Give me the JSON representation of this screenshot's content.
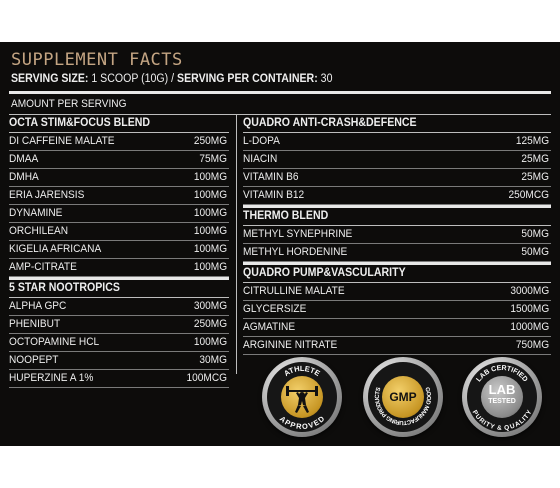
{
  "title": "SUPPLEMENT FACTS",
  "serving": {
    "size_label": "SERVING SIZE:",
    "size_value": "1 SCOOP (10G)",
    "separator": "/",
    "container_label": "SERVING PER CONTAINER:",
    "container_value": "30"
  },
  "amount_label": "AMOUNT PER SERVING",
  "left_blends": [
    {
      "name": "OCTA STIM&FOCUS BLEND",
      "items": [
        {
          "name": "DI CAFFEINE MALATE",
          "amount": "250MG"
        },
        {
          "name": "DMAA",
          "amount": "75MG"
        },
        {
          "name": "DMHA",
          "amount": "100MG"
        },
        {
          "name": "ERIA JARENSIS",
          "amount": "100MG"
        },
        {
          "name": "DYNAMINE",
          "amount": "100MG"
        },
        {
          "name": "ORCHILEAN",
          "amount": "100MG"
        },
        {
          "name": "KIGELIA AFRICANA",
          "amount": "100MG"
        },
        {
          "name": "AMP-CITRATE",
          "amount": "100MG"
        }
      ]
    },
    {
      "name": "5 STAR NOOTROPICS",
      "items": [
        {
          "name": "ALPHA GPC",
          "amount": "300MG"
        },
        {
          "name": "PHENIBUT",
          "amount": "250MG"
        },
        {
          "name": "OCTOPAMINE HCL",
          "amount": "100MG"
        },
        {
          "name": "NOOPEPT",
          "amount": "30MG"
        },
        {
          "name": "HUPERZINE A 1%",
          "amount": "100MCG"
        }
      ]
    }
  ],
  "right_blends": [
    {
      "name": "QUADRO  ANTI-CRASH&DEFENCE",
      "items": [
        {
          "name": "L-DOPA",
          "amount": "125MG"
        },
        {
          "name": "NIACIN",
          "amount": "25MG"
        },
        {
          "name": "VITAMIN B6",
          "amount": "25MG"
        },
        {
          "name": "VITAMIN B12",
          "amount": "250MCG"
        }
      ]
    },
    {
      "name": "THERMO BLEND",
      "items": [
        {
          "name": "METHYL SYNEPHRINE",
          "amount": "50MG"
        },
        {
          "name": "METHYL HORDENINE",
          "amount": "50MG"
        }
      ]
    },
    {
      "name": "QUADRO PUMP&VASCULARITY",
      "items": [
        {
          "name": "CITRULLINE MALATE",
          "amount": "3000MG"
        },
        {
          "name": "GLYCERSIZE",
          "amount": "1500MG"
        },
        {
          "name": "AGMATINE",
          "amount": "1000MG"
        },
        {
          "name": "ARGININE NITRATE",
          "amount": "750MG"
        }
      ]
    }
  ],
  "badges": {
    "athlete": {
      "top": "ATHLETE",
      "bottom": "APPROVED",
      "icon": "weightlifter-icon"
    },
    "gmp": {
      "ring": "GOOD MANUFACTURING PRODUCTS",
      "center": "GMP"
    },
    "lab": {
      "top": "LAB CERTIFIED",
      "center_1": "LAB",
      "center_2": "TESTED",
      "bottom": "PURITY & QUALITY"
    }
  },
  "colors": {
    "background": "#0d0c0b",
    "title": "#c4a583",
    "text": "#eeeeee",
    "badge_gold": "#d4a43a"
  }
}
